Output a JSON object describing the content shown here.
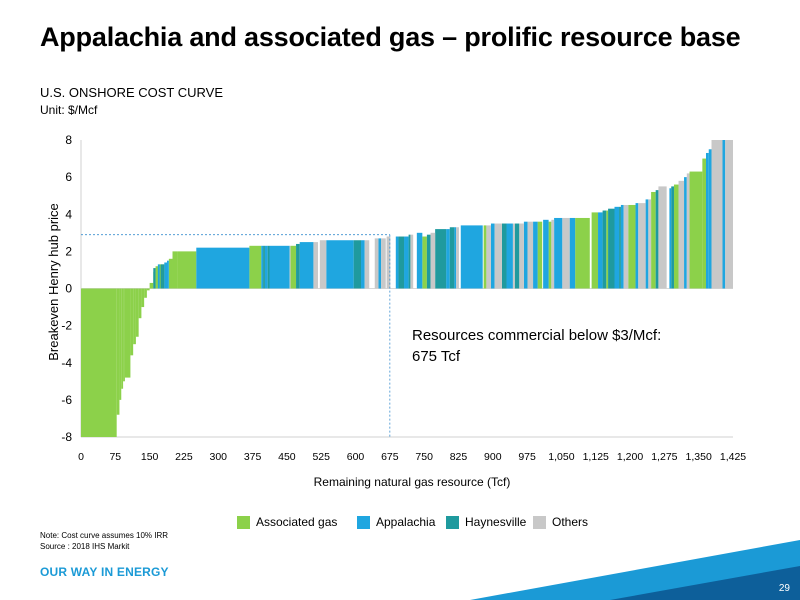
{
  "title": "Appalachia and associated gas – prolific resource base",
  "subtitle": "U.S. ONSHORE COST CURVE",
  "unit_label": "Unit: $/Mcf",
  "note": "Note: Cost curve assumes 10% IRR",
  "source": "Source : 2018 IHS Markit",
  "brand": "OUR WAY IN ENERGY",
  "page_number": "29",
  "annotation": {
    "line1": "Resources commercial below $3/Mcf:",
    "line2": "675 Tcf"
  },
  "chart_data": {
    "type": "bar",
    "title": "U.S. ONSHORE COST CURVE",
    "xlabel": "Remaining natural gas resource (Tcf)",
    "ylabel": "Breakeven Henry hub price",
    "xlim": [
      0,
      1425
    ],
    "ylim": [
      -8,
      8
    ],
    "x_ticks": [
      0,
      75,
      150,
      225,
      300,
      375,
      450,
      525,
      600,
      675,
      750,
      825,
      900,
      975,
      1050,
      1125,
      1200,
      1275,
      1350,
      1425
    ],
    "x_tick_labels": [
      "0",
      "75",
      "150",
      "225",
      "300",
      "375",
      "450",
      "525",
      "600",
      "675",
      "750",
      "825",
      "900",
      "975",
      "1,050",
      "1,125",
      "1,200",
      "1,275",
      "1,350",
      "1,425"
    ],
    "y_ticks": [
      -8,
      -6,
      -4,
      -2,
      0,
      2,
      4,
      6,
      8
    ],
    "legend": [
      {
        "name": "Associated gas",
        "color": "#8cd14a"
      },
      {
        "name": "Appalachia",
        "color": "#1fa6e0"
      },
      {
        "name": "Haynesville",
        "color": "#1f9a9e"
      },
      {
        "name": "Others",
        "color": "#c8c8c8"
      }
    ],
    "reference": {
      "x": 675,
      "y": 2.9
    },
    "series": [
      {
        "name": "Associated gas",
        "color": "#8cd14a",
        "segments": [
          [
            0,
            78,
            -8
          ],
          [
            78,
            84,
            -6.8
          ],
          [
            84,
            88,
            -6.0
          ],
          [
            88,
            92,
            -5.4
          ],
          [
            92,
            96,
            -5.0
          ],
          [
            96,
            108,
            -4.8
          ],
          [
            108,
            114,
            -3.6
          ],
          [
            114,
            120,
            -3.0
          ],
          [
            120,
            126,
            -2.6
          ],
          [
            126,
            132,
            -1.6
          ],
          [
            132,
            138,
            -1.0
          ],
          [
            138,
            144,
            -0.5
          ],
          [
            144,
            150,
            -0.1
          ],
          [
            150,
            158,
            0.3
          ],
          [
            158,
            163,
            0.9
          ],
          [
            163,
            170,
            1.2
          ],
          [
            170,
            182,
            1.3
          ],
          [
            192,
            200,
            1.6
          ],
          [
            200,
            210,
            2.0
          ],
          [
            210,
            252,
            2.0
          ],
          [
            368,
            394,
            2.3
          ],
          [
            458,
            470,
            2.3
          ],
          [
            746,
            756,
            2.8
          ],
          [
            880,
            886,
            3.4
          ],
          [
            998,
            1008,
            3.6
          ],
          [
            1022,
            1028,
            3.6
          ],
          [
            1080,
            1112,
            3.8
          ],
          [
            1116,
            1130,
            4.1
          ],
          [
            1148,
            1152,
            4.2
          ],
          [
            1196,
            1212,
            4.5
          ],
          [
            1246,
            1256,
            5.2
          ],
          [
            1296,
            1306,
            5.6
          ],
          [
            1330,
            1358,
            6.3
          ],
          [
            1358,
            1366,
            7.0
          ]
        ]
      },
      {
        "name": "Appalachia",
        "color": "#1fa6e0",
        "segments": [
          [
            168,
            172,
            1.3
          ],
          [
            182,
            188,
            1.4
          ],
          [
            188,
            192,
            1.5
          ],
          [
            252,
            368,
            2.2
          ],
          [
            394,
            398,
            2.3
          ],
          [
            402,
            408,
            2.3
          ],
          [
            412,
            456,
            2.3
          ],
          [
            478,
            508,
            2.5
          ],
          [
            536,
            596,
            2.6
          ],
          [
            612,
            620,
            2.6
          ],
          [
            650,
            656,
            2.7
          ],
          [
            688,
            694,
            2.8
          ],
          [
            706,
            716,
            2.8
          ],
          [
            734,
            746,
            3.0
          ],
          [
            798,
            806,
            3.2
          ],
          [
            816,
            820,
            3.3
          ],
          [
            830,
            878,
            3.4
          ],
          [
            896,
            904,
            3.5
          ],
          [
            930,
            944,
            3.5
          ],
          [
            968,
            976,
            3.6
          ],
          [
            988,
            998,
            3.6
          ],
          [
            1010,
            1022,
            3.7
          ],
          [
            1034,
            1052,
            3.8
          ],
          [
            1068,
            1080,
            3.8
          ],
          [
            1130,
            1140,
            4.1
          ],
          [
            1166,
            1176,
            4.4
          ],
          [
            1180,
            1186,
            4.5
          ],
          [
            1212,
            1218,
            4.6
          ],
          [
            1234,
            1240,
            4.8
          ],
          [
            1286,
            1290,
            5.4
          ],
          [
            1318,
            1324,
            6.0
          ],
          [
            1366,
            1372,
            7.3
          ],
          [
            1372,
            1378,
            7.5
          ],
          [
            1402,
            1408,
            8.0
          ]
        ]
      },
      {
        "name": "Haynesville",
        "color": "#1f9a9e",
        "segments": [
          [
            158,
            163,
            1.1
          ],
          [
            174,
            178,
            1.3
          ],
          [
            178,
            182,
            1.3
          ],
          [
            398,
            402,
            2.3
          ],
          [
            408,
            412,
            2.3
          ],
          [
            470,
            478,
            2.4
          ],
          [
            596,
            612,
            2.6
          ],
          [
            694,
            706,
            2.8
          ],
          [
            716,
            720,
            2.9
          ],
          [
            756,
            764,
            2.9
          ],
          [
            774,
            798,
            3.2
          ],
          [
            806,
            816,
            3.3
          ],
          [
            920,
            930,
            3.5
          ],
          [
            948,
            958,
            3.5
          ],
          [
            1140,
            1148,
            4.2
          ],
          [
            1152,
            1166,
            4.3
          ],
          [
            1176,
            1180,
            4.4
          ],
          [
            1256,
            1262,
            5.3
          ],
          [
            1290,
            1296,
            5.5
          ]
        ]
      },
      {
        "name": "Others",
        "color": "#c8c8c8",
        "segments": [
          [
            456,
            458,
            2.3
          ],
          [
            508,
            518,
            2.5
          ],
          [
            522,
            536,
            2.6
          ],
          [
            620,
            630,
            2.6
          ],
          [
            642,
            650,
            2.7
          ],
          [
            656,
            666,
            2.7
          ],
          [
            668,
            676,
            2.8
          ],
          [
            720,
            726,
            2.9
          ],
          [
            764,
            774,
            3.0
          ],
          [
            820,
            826,
            3.3
          ],
          [
            886,
            896,
            3.4
          ],
          [
            904,
            920,
            3.5
          ],
          [
            944,
            948,
            3.5
          ],
          [
            958,
            968,
            3.5
          ],
          [
            976,
            988,
            3.6
          ],
          [
            1028,
            1034,
            3.7
          ],
          [
            1052,
            1068,
            3.8
          ],
          [
            1186,
            1196,
            4.5
          ],
          [
            1218,
            1234,
            4.6
          ],
          [
            1240,
            1246,
            4.8
          ],
          [
            1262,
            1280,
            5.5
          ],
          [
            1306,
            1318,
            5.8
          ],
          [
            1324,
            1330,
            6.2
          ],
          [
            1378,
            1402,
            8.0
          ],
          [
            1408,
            1425,
            8.0
          ]
        ]
      }
    ]
  }
}
